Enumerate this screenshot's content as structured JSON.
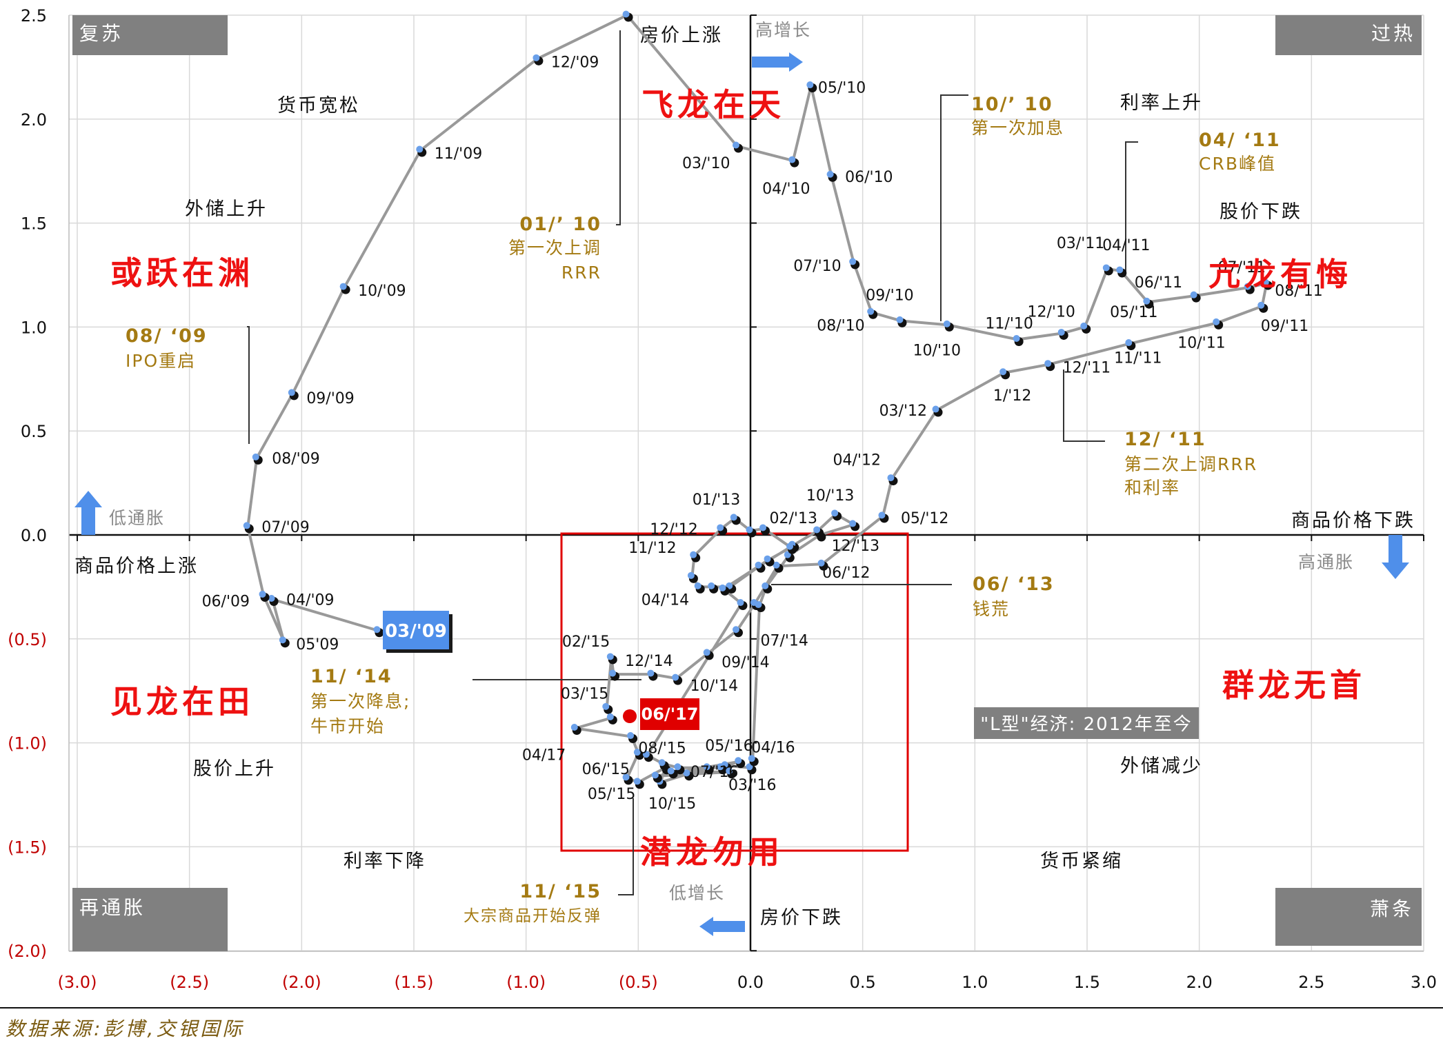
{
  "chart_data": {
    "type": "scatter",
    "xlim": [
      -3.0,
      3.0
    ],
    "ylim": [
      -2.0,
      2.5
    ],
    "grid": true,
    "x_ticks": [
      "(3.0)",
      "(2.5)",
      "(2.0)",
      "(1.5)",
      "(1.0)",
      "(0.5)",
      "0.0",
      "0.5",
      "1.0",
      "1.5",
      "2.0",
      "2.5",
      "3.0"
    ],
    "y_ticks": [
      "2.5",
      "2.0",
      "1.5",
      "1.0",
      "0.5",
      "0.0",
      "(0.5)",
      "(1.0)",
      "(1.5)",
      "(2.0)"
    ],
    "series": [
      {
        "points": [
          {
            "label": "03/'09",
            "x": -1.66,
            "y": -0.46
          },
          {
            "label": "04/'09",
            "x": -2.13,
            "y": -0.31
          },
          {
            "label": "05'09",
            "x": -2.08,
            "y": -0.51
          },
          {
            "label": "06/'09",
            "x": -2.17,
            "y": -0.29
          },
          {
            "label": "07/'09",
            "x": -2.24,
            "y": 0.04
          },
          {
            "label": "08/'09",
            "x": -2.2,
            "y": 0.37
          },
          {
            "label": "09/'09",
            "x": -2.04,
            "y": 0.68
          },
          {
            "label": "10/'09",
            "x": -1.81,
            "y": 1.19
          },
          {
            "label": "11/'09",
            "x": -1.47,
            "y": 1.85
          },
          {
            "label": "12/'09",
            "x": -0.95,
            "y": 2.29
          },
          {
            "label": "",
            "x": -0.55,
            "y": 2.5
          },
          {
            "label": "03/'10",
            "x": -0.06,
            "y": 1.87
          },
          {
            "label": "04/'10",
            "x": 0.19,
            "y": 1.8
          },
          {
            "label": "05/'10",
            "x": 0.27,
            "y": 2.16
          },
          {
            "label": "06/'10",
            "x": 0.36,
            "y": 1.73
          },
          {
            "label": "07/'10",
            "x": 0.46,
            "y": 1.31
          },
          {
            "label": "08/'10",
            "x": 0.54,
            "y": 1.07
          },
          {
            "label": "09/'10",
            "x": 0.67,
            "y": 1.03
          },
          {
            "label": "10/'10",
            "x": 0.88,
            "y": 1.01
          },
          {
            "label": "11/'10",
            "x": 1.19,
            "y": 0.94
          },
          {
            "label": "12/'10",
            "x": 1.39,
            "y": 0.97
          },
          {
            "label": "",
            "x": 1.49,
            "y": 1.0
          },
          {
            "label": "03/'11",
            "x": 1.59,
            "y": 1.28
          },
          {
            "label": "04/'11",
            "x": 1.65,
            "y": 1.27
          },
          {
            "label": "05/'11",
            "x": 1.77,
            "y": 1.12
          },
          {
            "label": "06/'11",
            "x": 1.98,
            "y": 1.15
          },
          {
            "label": "07/'11",
            "x": 2.22,
            "y": 1.19
          },
          {
            "label": "08/'11",
            "x": 2.3,
            "y": 1.21
          },
          {
            "label": "09/'11",
            "x": 2.28,
            "y": 1.1
          },
          {
            "label": "10/'11",
            "x": 2.08,
            "y": 1.02
          },
          {
            "label": "11/'11",
            "x": 1.69,
            "y": 0.92
          },
          {
            "label": "12/'11",
            "x": 1.33,
            "y": 0.82
          },
          {
            "label": "1/'12",
            "x": 1.13,
            "y": 0.78
          },
          {
            "label": "03/'12",
            "x": 0.83,
            "y": 0.6
          },
          {
            "label": "04/'12",
            "x": 0.63,
            "y": 0.27
          },
          {
            "label": "05/'12",
            "x": 0.59,
            "y": 0.09
          },
          {
            "label": "06/'12",
            "x": 0.32,
            "y": -0.14
          },
          {
            "label": "",
            "x": 0.12,
            "y": -0.15
          },
          {
            "label": "",
            "x": 0.02,
            "y": -0.33
          },
          {
            "label": "07/'14",
            "x": -0.06,
            "y": -0.46
          },
          {
            "label": "09/'14",
            "x": -0.19,
            "y": -0.57
          },
          {
            "label": "10/'14",
            "x": -0.33,
            "y": -0.69
          },
          {
            "label": "12/'14",
            "x": -0.44,
            "y": -0.67
          },
          {
            "label": "",
            "x": -0.61,
            "y": -0.67
          },
          {
            "label": "02/'15",
            "x": -0.62,
            "y": -0.59
          },
          {
            "label": "",
            "x": -0.64,
            "y": -0.83
          },
          {
            "label": "03/'15",
            "x": -0.62,
            "y": -0.88
          },
          {
            "label": "04/17",
            "x": -0.78,
            "y": -0.93
          },
          {
            "label": "",
            "x": -0.53,
            "y": -0.97
          },
          {
            "label": "08/'15",
            "x": -0.5,
            "y": -1.05
          },
          {
            "label": "06/'15",
            "x": -0.55,
            "y": -1.17
          },
          {
            "label": "05/'15",
            "x": -0.5,
            "y": -1.19
          },
          {
            "label": "",
            "x": -0.38,
            "y": -1.12
          },
          {
            "label": "10/'15",
            "x": -0.4,
            "y": -1.19
          },
          {
            "label": "07/'16",
            "x": -0.28,
            "y": -1.15
          },
          {
            "label": "",
            "x": -0.19,
            "y": -1.12
          },
          {
            "label": "05/'16",
            "x": -0.11,
            "y": -1.11
          },
          {
            "label": "03/'16",
            "x": 0.0,
            "y": -1.12
          },
          {
            "label": "04/16",
            "x": 0.01,
            "y": -1.08
          },
          {
            "label": "",
            "x": 0.04,
            "y": -0.34
          },
          {
            "label": "",
            "x": 0.07,
            "y": -0.25
          },
          {
            "label": "",
            "x": 0.17,
            "y": -0.1
          },
          {
            "label": "",
            "x": 0.31,
            "y": 0.0
          },
          {
            "label": "12/'13",
            "x": 0.46,
            "y": 0.05
          },
          {
            "label": "10/'13",
            "x": 0.38,
            "y": 0.1
          },
          {
            "label": "",
            "x": 0.3,
            "y": 0.02
          },
          {
            "label": "",
            "x": 0.19,
            "y": -0.05
          },
          {
            "label": "",
            "x": 0.04,
            "y": -0.15
          },
          {
            "label": "",
            "x": -0.09,
            "y": -0.25
          },
          {
            "label": "",
            "x": -0.17,
            "y": -0.25
          },
          {
            "label": "04/'14",
            "x": -0.23,
            "y": -0.25
          },
          {
            "label": "",
            "x": -0.26,
            "y": -0.2
          },
          {
            "label": "11/'12",
            "x": -0.25,
            "y": -0.1
          },
          {
            "label": "12/'12",
            "x": -0.13,
            "y": 0.03
          },
          {
            "label": "01/'13",
            "x": -0.07,
            "y": 0.08
          },
          {
            "label": "",
            "x": 0.0,
            "y": 0.02
          },
          {
            "label": "02/'13",
            "x": 0.06,
            "y": 0.03
          },
          {
            "label": "",
            "x": 0.18,
            "y": -0.06
          },
          {
            "label": "",
            "x": 0.08,
            "y": -0.12
          },
          {
            "label": "",
            "x": -0.12,
            "y": -0.26
          },
          {
            "label": "",
            "x": -0.04,
            "y": -0.33
          },
          {
            "label": "",
            "x": -0.46,
            "y": -1.06
          },
          {
            "label": "",
            "x": -0.39,
            "y": -1.1
          },
          {
            "label": "",
            "x": -0.32,
            "y": -1.12
          },
          {
            "label": "",
            "x": -0.13,
            "y": -1.12
          },
          {
            "label": "",
            "x": -0.05,
            "y": -1.09
          },
          {
            "label": "",
            "x": -0.42,
            "y": -1.16
          },
          {
            "label": "",
            "x": -0.09,
            "y": -1.14
          },
          {
            "label": "",
            "x": -0.35,
            "y": -1.14
          }
        ]
      }
    ],
    "highlight_points": [
      {
        "label": "03/'09",
        "x": -1.66,
        "y": -0.46
      },
      {
        "label": "06/'17",
        "x": -0.52,
        "y": -0.88
      }
    ]
  },
  "quadrants": {
    "top_left": "复苏",
    "top_right": "过热",
    "bottom_left": "再通胀",
    "bottom_right": "萧条"
  },
  "axis_notes": {
    "high_growth": "高增长",
    "low_growth": "低增长",
    "low_inflation": "低通胀",
    "high_inflation": "高通胀",
    "commodity_up": "商品价格上涨",
    "commodity_down": "商品价格下跌"
  },
  "phrases": {
    "monetary_easing": "货币宽松",
    "fx_up": "外储上升",
    "house_up": "房价上涨",
    "rate_up": "利率上升",
    "stock_down": "股价下跌",
    "stock_up": "股价上升",
    "rate_down": "利率下降",
    "monetary_tight": "货币紧缩",
    "fx_down": "外储减少",
    "house_down": "房价下跌"
  },
  "dragons": {
    "leap": "或跃在渊",
    "fly": "飞龙在天",
    "regret": "亢龙有悔",
    "field": "见龙在田",
    "hidden": "潜龙勿用",
    "leaderless": "群龙无首"
  },
  "annotations": [
    {
      "date": "08/ ‘09",
      "text": "IPO重启"
    },
    {
      "date": "01/’ 10",
      "text": "第一次上调",
      "text2": "RRR"
    },
    {
      "date": "10/’ 10",
      "text": "第一次加息"
    },
    {
      "date": "04/ ‘11",
      "text": "CRB峰值"
    },
    {
      "date": "12/ ‘11",
      "text": "第二次上调RRR",
      "text2": "和利率"
    },
    {
      "date": "06/ ‘13",
      "text": "钱荒"
    },
    {
      "date": "11/ ‘14",
      "text": "第一次降息;",
      "text2": "牛市开始"
    },
    {
      "date": "11/ ‘15",
      "text": "大宗商品开始反弹"
    }
  ],
  "l_shape_label": "\"L型\"经济: 2012年至今",
  "source": "数据来源:彭博,交银国际",
  "colors": {
    "line": "#999999",
    "dot_dark": "#111111",
    "dot_light": "#6aa0ea",
    "highlight_blue": "#4f8fea",
    "highlight_red": "#e00000",
    "quadrant_box": "#808080",
    "red_text": "#ee1111",
    "gold_text": "#a47a12"
  }
}
